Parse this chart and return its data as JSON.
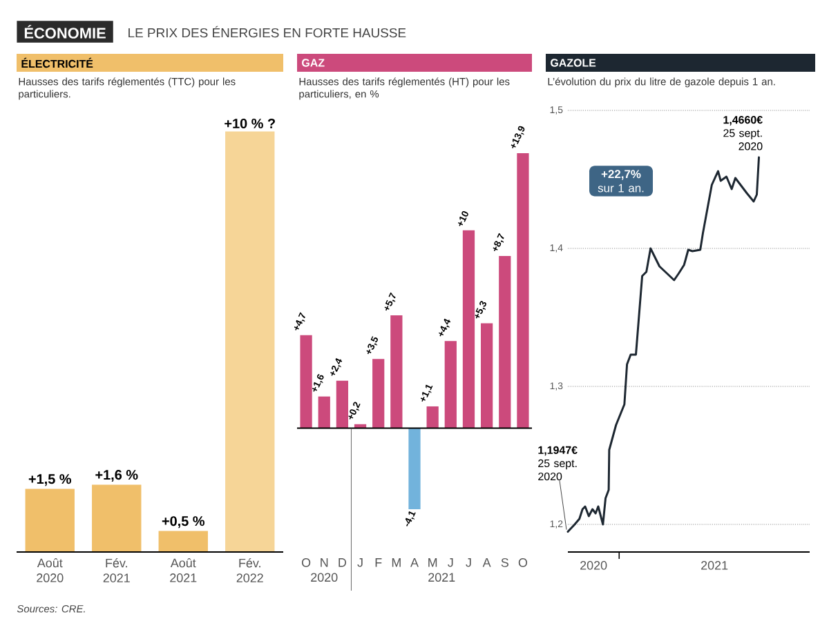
{
  "chart_data": [
    {
      "type": "other",
      "title": "ÉCONOMIE",
      "subtitle": "LE PRIX DES ÉNERGIES EN FORTE HAUSSE",
      "annotations": [
        "Sources: CRE."
      ]
    },
    {
      "type": "bar",
      "title": "ÉLECTRICITÉ",
      "subtitle": "Hausses des tarifs réglementés (TTC) pour les particuliers.",
      "categories": [
        "Août 2020",
        "Fév. 2021",
        "Août 2021",
        "Fév. 2022"
      ],
      "values": [
        1.5,
        1.6,
        0.5,
        10
      ],
      "colors": [
        "#f0bf6a",
        "#f0bf6a",
        "#f0bf6a",
        "#f6d597"
      ],
      "value_labels": [
        "+1,5 %",
        "+1,6 %",
        "+0,5 %",
        "+10 % ?"
      ]
    },
    {
      "type": "bar",
      "title": "GAZ",
      "subtitle": "Hausses des tarifs réglementés (HT) pour les particuliers, en %",
      "categories": [
        "O",
        "N",
        "D",
        "J",
        "F",
        "M",
        "A",
        "M",
        "J",
        "J",
        "A",
        "S",
        "O"
      ],
      "values": [
        4.7,
        1.6,
        2.4,
        0.2,
        3.5,
        5.7,
        -4.1,
        1.1,
        4.4,
        10,
        5.3,
        8.7,
        13.9
      ],
      "colors": [
        "#cc4a7c",
        "#cc4a7c",
        "#cc4a7c",
        "#cc4a7c",
        "#cc4a7c",
        "#cc4a7c",
        "#72b3dc",
        "#cc4a7c",
        "#cc4a7c",
        "#cc4a7c",
        "#cc4a7c",
        "#cc4a7c",
        "#cc4a7c"
      ],
      "value_labels": [
        "+4,7",
        "+1,6",
        "+2,4",
        "+0,2",
        "+3,5",
        "+5,7",
        "-4,1",
        "+1,1",
        "+4,4",
        "+10",
        "+5,3",
        "+8,7",
        "+13,9"
      ],
      "annotations": [
        "2020",
        "2021"
      ]
    },
    {
      "type": "line",
      "title": "GAZOLE",
      "subtitle": "L’évolution du prix du litre de gazole depuis 1 an.",
      "color": "#1d2731",
      "line_style": "solid",
      "grid": "y",
      "x": [
        "2020-09-25",
        "2020-10-08",
        "2020-10-17",
        "2020-10-23",
        "2020-10-28",
        "2020-11-04",
        "2020-11-11",
        "2020-11-17",
        "2020-11-22",
        "2020-12-01",
        "2020-12-06",
        "2020-12-12",
        "2020-12-13",
        "2020-12-26",
        "2021-01-11",
        "2021-01-16",
        "2021-01-23",
        "2021-02-02",
        "2021-02-14",
        "2021-02-22",
        "2021-03-02",
        "2021-03-19",
        "2021-04-16",
        "2021-04-25",
        "2021-05-05",
        "2021-05-08",
        "2021-05-13",
        "2021-05-21",
        "2021-06-05",
        "2021-06-10",
        "2021-06-27",
        "2021-07-09",
        "2021-07-14",
        "2021-07-25",
        "2021-08-04",
        "2021-08-11",
        "2021-09-02",
        "2021-09-15",
        "2021-09-21",
        "2021-09-25"
      ],
      "values": [
        1.1947,
        1.2,
        1.204,
        1.211,
        1.213,
        1.206,
        1.211,
        1.208,
        1.213,
        1.2,
        1.219,
        1.225,
        1.254,
        1.272,
        1.287,
        1.316,
        1.323,
        1.323,
        1.38,
        1.383,
        1.4,
        1.387,
        1.377,
        1.382,
        1.388,
        1.392,
        1.399,
        1.398,
        1.399,
        1.411,
        1.446,
        1.456,
        1.449,
        1.452,
        1.443,
        1.451,
        1.44,
        1.434,
        1.439,
        1.466
      ],
      "xlim": [
        "2020-09-25",
        "2021-12-31"
      ],
      "xticks": [
        {
          "value": "2020-11-13",
          "label": "2020"
        },
        {
          "value": "2021-01-01",
          "label": null
        },
        {
          "value": "2021-07-02",
          "label": "2021"
        }
      ],
      "ylim": [
        1.18,
        1.5
      ],
      "yticks": [
        {
          "value": 1.2,
          "label": "1,2"
        },
        {
          "value": 1.3,
          "label": "1,3"
        },
        {
          "value": 1.4,
          "label": "1,4"
        },
        {
          "value": 1.5,
          "label": "1,5"
        }
      ],
      "annotations": [
        {
          "text": "**1,1947€** 25 sept. 2020",
          "x": "2020-09-25",
          "y": 1.1947
        },
        {
          "text": "**1,4660€** 25 sept. 2020",
          "x": "2021-09-25",
          "y": 1.466
        },
        "**+22,7%** sur 1 an."
      ]
    }
  ]
}
